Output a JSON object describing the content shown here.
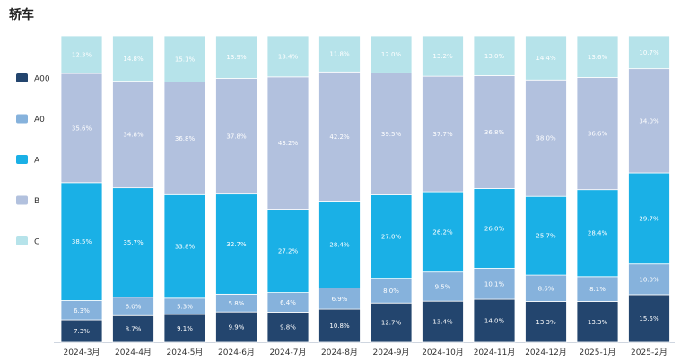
{
  "chart_data": {
    "type": "bar",
    "stacked": true,
    "title": "轿车",
    "categories": [
      "2024-3月",
      "2024-4月",
      "2024-5月",
      "2024-6月",
      "2024-7月",
      "2024-8月",
      "2024-9月",
      "2024-10月",
      "2024-11月",
      "2024-12月",
      "2025-1月",
      "2025-2月"
    ],
    "series": [
      {
        "name": "A00",
        "color": "#23456e",
        "values": [
          7.3,
          8.7,
          9.1,
          9.9,
          9.8,
          10.8,
          12.7,
          13.4,
          14.0,
          13.3,
          13.3,
          15.5
        ],
        "labels": [
          "7.3%",
          "8.7%",
          "9.1%",
          "9.9%",
          "9.8%",
          "10.8%",
          "12.7%",
          "13.4%",
          "14.0%",
          "13.3%",
          "13.3%",
          "15.5%"
        ]
      },
      {
        "name": "A0",
        "color": "#86b2dc",
        "values": [
          6.3,
          6.0,
          5.3,
          5.8,
          6.4,
          6.9,
          8.0,
          9.5,
          10.1,
          8.6,
          8.1,
          10.0
        ],
        "labels": [
          "6.3%",
          "6.0%",
          "5.3%",
          "5.8%",
          "6.4%",
          "6.9%",
          "8.0%",
          "9.5%",
          "10.1%",
          "8.6%",
          "8.1%",
          "10.0%"
        ]
      },
      {
        "name": "A",
        "color": "#1ab0e6",
        "values": [
          38.5,
          35.7,
          33.8,
          32.7,
          27.2,
          28.4,
          27.0,
          26.2,
          26.0,
          25.7,
          28.4,
          29.7
        ],
        "labels": [
          "38.5%",
          "35.7%",
          "33.8%",
          "32.7%",
          "27.2%",
          "28.4%",
          "27.0%",
          "26.2%",
          "26.0%",
          "25.7%",
          "28.4%",
          "29.7%"
        ]
      },
      {
        "name": "B",
        "color": "#b2c1de",
        "values": [
          35.6,
          34.8,
          36.8,
          37.8,
          43.2,
          42.2,
          39.5,
          37.7,
          36.8,
          38.0,
          36.6,
          34.0
        ],
        "labels": [
          "35.6%",
          "34.8%",
          "36.8%",
          "37.8%",
          "43.2%",
          "42.2%",
          "39.5%",
          "37.7%",
          "36.8%",
          "38.0%",
          "36.6%",
          "34.0%"
        ]
      },
      {
        "name": "C",
        "color": "#b6e3ea",
        "values": [
          12.3,
          14.8,
          15.1,
          13.9,
          13.4,
          11.8,
          12.0,
          13.2,
          13.0,
          14.4,
          13.6,
          10.7
        ],
        "labels": [
          "12.3%",
          "14.8%",
          "15.1%",
          "13.9%",
          "13.4%",
          "11.8%",
          "12.0%",
          "13.2%",
          "13.0%",
          "14.4%",
          "13.6%",
          "10.7%"
        ]
      }
    ],
    "ylim": [
      0,
      100
    ],
    "legend": "left",
    "grid": false
  }
}
